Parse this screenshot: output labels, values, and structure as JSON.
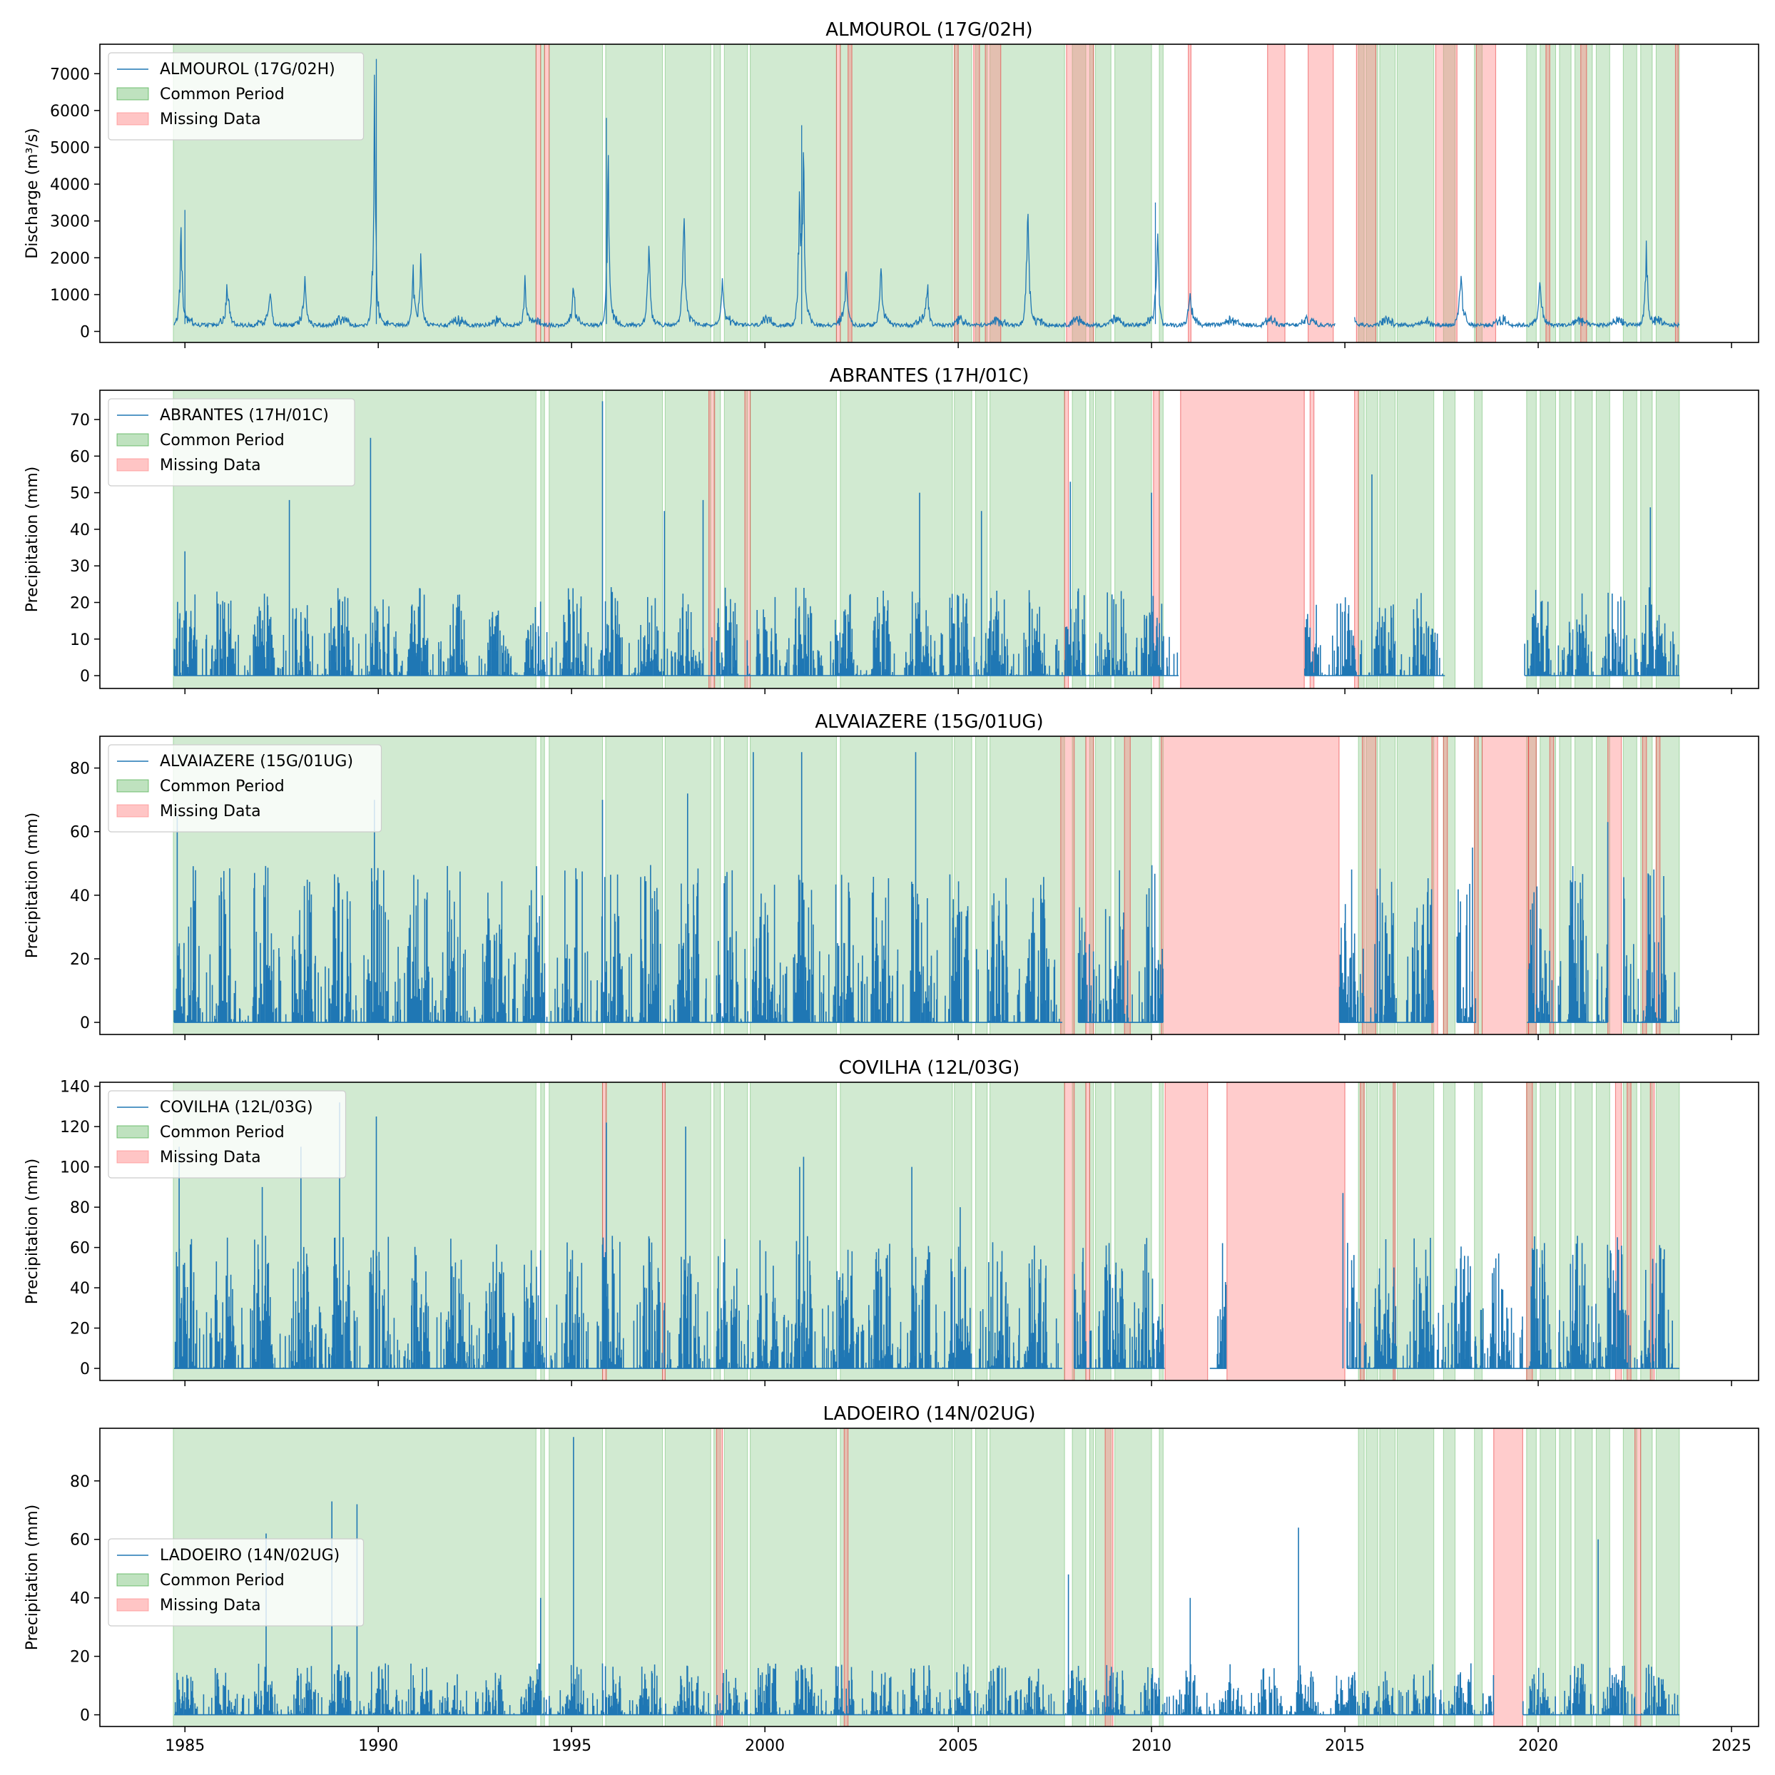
{
  "figure": {
    "xaxis": {
      "ticks": [
        1985,
        1990,
        1995,
        2000,
        2005,
        2010,
        2015,
        2020,
        2025
      ],
      "xlim": [
        1982.8,
        2025.7
      ]
    },
    "colors": {
      "series": "#1f77b4",
      "common": "#2ca02c",
      "missing": "#ff7f7f",
      "missing_edge": "#e41a1c"
    }
  },
  "common_period": [
    [
      1984.7,
      1994.08
    ],
    [
      1994.2,
      1994.3
    ],
    [
      1994.42,
      1995.8
    ],
    [
      1995.88,
      1997.35
    ],
    [
      1997.42,
      1998.6
    ],
    [
      1998.68,
      1998.85
    ],
    [
      1998.95,
      1999.55
    ],
    [
      1999.62,
      2001.85
    ],
    [
      2001.95,
      2004.85
    ],
    [
      2004.9,
      2005.35
    ],
    [
      2005.45,
      2005.75
    ],
    [
      2005.82,
      2007.75
    ],
    [
      2007.95,
      2008.3
    ],
    [
      2008.4,
      2008.5
    ],
    [
      2008.55,
      2008.95
    ],
    [
      2009.05,
      2010.0
    ],
    [
      2010.2,
      2010.3
    ],
    [
      2015.35,
      2015.5
    ],
    [
      2015.55,
      2015.85
    ],
    [
      2015.9,
      2016.3
    ],
    [
      2016.35,
      2017.3
    ],
    [
      2017.55,
      2017.85
    ],
    [
      2018.35,
      2018.55
    ],
    [
      2019.7,
      2019.95
    ],
    [
      2020.05,
      2020.45
    ],
    [
      2020.55,
      2020.85
    ],
    [
      2020.95,
      2021.4
    ],
    [
      2021.5,
      2021.85
    ],
    [
      2022.2,
      2022.55
    ],
    [
      2022.65,
      2022.95
    ],
    [
      2023.05,
      2023.65
    ]
  ],
  "chart_data": [
    {
      "type": "line",
      "title": "ALMOUROL  (17G/02H)",
      "ylabel": "Discharge (m³/s)",
      "ylim": [
        -300,
        7800
      ],
      "yticks": [
        0,
        1000,
        2000,
        3000,
        4000,
        5000,
        6000,
        7000
      ],
      "legend": {
        "position": "upper-left",
        "entries": [
          "ALMOUROL  (17G/02H)",
          "Common Period",
          "Missing Data"
        ]
      },
      "series": {
        "name": "ALMOUROL  (17G/02H)",
        "baseline": 120,
        "noise": 180,
        "gaps": [
          [
            2014.75,
            2015.25
          ]
        ],
        "peaks": [
          [
            1984.9,
            3300
          ],
          [
            1986.1,
            1450
          ],
          [
            1987.2,
            1350
          ],
          [
            1988.1,
            1900
          ],
          [
            1989.9,
            7400
          ],
          [
            1990.9,
            1850
          ],
          [
            1991.1,
            2000
          ],
          [
            1993.8,
            1550
          ],
          [
            1995.05,
            1300
          ],
          [
            1995.95,
            5700
          ],
          [
            1997.0,
            2800
          ],
          [
            1997.9,
            4400
          ],
          [
            1998.9,
            1500
          ],
          [
            2000.9,
            5000
          ],
          [
            2001.0,
            5600
          ],
          [
            2002.1,
            2000
          ],
          [
            2003.0,
            2000
          ],
          [
            2004.2,
            1500
          ],
          [
            2006.8,
            5000
          ],
          [
            2010.15,
            3500
          ],
          [
            2011.0,
            1100
          ],
          [
            2015.2,
            1200
          ],
          [
            2018.0,
            1850
          ],
          [
            2020.05,
            1400
          ],
          [
            2022.8,
            2700
          ]
        ],
        "spikes": [
          [
            1985.0,
            3300
          ],
          [
            1989.95,
            7400
          ],
          [
            1995.9,
            5800
          ],
          [
            2000.95,
            5600
          ],
          [
            2010.1,
            3500
          ]
        ]
      },
      "missing": [
        [
          1994.08,
          1994.2
        ],
        [
          1994.3,
          1994.42
        ],
        [
          2001.85,
          2001.95
        ],
        [
          2002.15,
          2002.25
        ],
        [
          2004.9,
          2005.0
        ],
        [
          2005.4,
          2005.55
        ],
        [
          2005.7,
          2006.1
        ],
        [
          2007.8,
          2008.5
        ],
        [
          2010.95,
          2011.02
        ],
        [
          2013.0,
          2013.45
        ],
        [
          2014.05,
          2014.7
        ],
        [
          2015.3,
          2015.8
        ],
        [
          2017.35,
          2017.9
        ],
        [
          2018.4,
          2018.9
        ],
        [
          2020.2,
          2020.3
        ],
        [
          2021.1,
          2021.25
        ],
        [
          2023.55,
          2023.62
        ]
      ]
    },
    {
      "type": "line",
      "title": "ABRANTES (17H/01C)",
      "ylabel": "Precipitation (mm)",
      "ylim": [
        -3.5,
        78
      ],
      "yticks": [
        0,
        10,
        20,
        30,
        40,
        50,
        60,
        70
      ],
      "legend": {
        "position": "upper-left",
        "entries": [
          "ABRANTES (17H/01C)",
          "Common Period",
          "Missing Data"
        ]
      },
      "series": {
        "name": "ABRANTES (17H/01C)",
        "noise": 22,
        "gaps": [
          [
            2010.7,
            2013.95
          ],
          [
            2017.6,
            2019.65
          ]
        ],
        "spikes": [
          [
            1985.0,
            34
          ],
          [
            1987.7,
            48
          ],
          [
            1989.8,
            65
          ],
          [
            1995.8,
            75
          ],
          [
            1997.4,
            45
          ],
          [
            1998.4,
            48
          ],
          [
            2004.0,
            50
          ],
          [
            2005.6,
            45
          ],
          [
            2007.9,
            53
          ],
          [
            2010.0,
            50
          ],
          [
            2015.7,
            55
          ],
          [
            2022.9,
            46
          ]
        ]
      },
      "missing": [
        [
          1998.55,
          1998.7
        ],
        [
          1999.48,
          1999.62
        ],
        [
          2007.75,
          2007.85
        ],
        [
          2010.05,
          2010.2
        ],
        [
          2010.75,
          2013.95
        ],
        [
          2014.1,
          2014.2
        ],
        [
          2015.25,
          2015.35
        ]
      ]
    },
    {
      "type": "line",
      "title": "ALVAIAZERE (15G/01UG)",
      "ylabel": "Precipitation (mm)",
      "ylim": [
        -3.8,
        90
      ],
      "yticks": [
        0,
        20,
        40,
        60,
        80
      ],
      "legend": {
        "position": "upper-left",
        "entries": [
          "ALVAIAZERE (15G/01UG)",
          "Common Period",
          "Missing Data"
        ]
      },
      "series": {
        "name": "ALVAIAZERE (15G/01UG)",
        "noise": 45,
        "gaps": [
          [
            2007.7,
            2008.1
          ],
          [
            2010.3,
            2014.85
          ],
          [
            2017.3,
            2017.9
          ],
          [
            2018.4,
            2019.7
          ],
          [
            2021.8,
            2022.2
          ]
        ],
        "spikes": [
          [
            1984.8,
            65
          ],
          [
            1986.8,
            47
          ],
          [
            1989.9,
            70
          ],
          [
            1995.8,
            70
          ],
          [
            1998.0,
            72
          ],
          [
            1999.7,
            85
          ],
          [
            2000.95,
            85
          ],
          [
            2003.9,
            85
          ],
          [
            2018.3,
            55
          ],
          [
            2021.8,
            63
          ]
        ]
      },
      "missing": [
        [
          2007.65,
          2008.0
        ],
        [
          2008.3,
          2008.5
        ],
        [
          2009.3,
          2009.45
        ],
        [
          2010.25,
          2014.85
        ],
        [
          2015.45,
          2015.8
        ],
        [
          2017.25,
          2017.4
        ],
        [
          2017.55,
          2017.65
        ],
        [
          2018.35,
          2018.45
        ],
        [
          2018.55,
          2019.75
        ],
        [
          2019.75,
          2019.95
        ],
        [
          2020.3,
          2020.4
        ],
        [
          2021.8,
          2022.15
        ],
        [
          2022.7,
          2022.8
        ],
        [
          2023.05,
          2023.15
        ]
      ]
    },
    {
      "type": "line",
      "title": "COVILHA (12L/03G)",
      "ylabel": "Precipitation (mm)",
      "ylim": [
        -6,
        142
      ],
      "yticks": [
        0,
        20,
        40,
        60,
        80,
        100,
        120,
        140
      ],
      "legend": {
        "position": "upper-left",
        "entries": [
          "COVILHA (12L/03G)",
          "Common Period",
          "Missing Data"
        ]
      },
      "series": {
        "name": "COVILHA (12L/03G)",
        "noise": 60,
        "gaps": [
          [
            2007.7,
            2008.0
          ],
          [
            2010.35,
            2011.5
          ],
          [
            2011.95,
            2015.05
          ]
        ],
        "spikes": [
          [
            1984.85,
            110
          ],
          [
            1987.0,
            90
          ],
          [
            1988.0,
            110
          ],
          [
            1989.0,
            132
          ],
          [
            1989.95,
            125
          ],
          [
            1995.9,
            122
          ],
          [
            1997.95,
            120
          ],
          [
            2000.9,
            100
          ],
          [
            2001.0,
            105
          ],
          [
            2003.8,
            100
          ],
          [
            2005.05,
            80
          ],
          [
            2014.95,
            87
          ]
        ]
      },
      "missing": [
        [
          1995.8,
          1995.9
        ],
        [
          1997.35,
          1997.42
        ],
        [
          2007.75,
          2008.0
        ],
        [
          2008.3,
          2008.4
        ],
        [
          2010.35,
          2011.45
        ],
        [
          2011.95,
          2015.0
        ],
        [
          2015.4,
          2015.5
        ],
        [
          2016.25,
          2016.3
        ],
        [
          2019.7,
          2019.85
        ],
        [
          2022.0,
          2022.15
        ],
        [
          2022.3,
          2022.4
        ],
        [
          2022.9,
          2023.0
        ]
      ]
    },
    {
      "type": "line",
      "title": "LADOEIRO (14N/02UG)",
      "ylabel": "Precipitation (mm)",
      "ylim": [
        -4,
        98
      ],
      "yticks": [
        0,
        20,
        40,
        60,
        80
      ],
      "legend": {
        "position": "center-left",
        "entries": [
          "LADOEIRO (14N/02UG)",
          "Common Period",
          "Missing Data"
        ]
      },
      "series": {
        "name": "LADOEIRO (14N/02UG)",
        "noise": 16,
        "gaps": [
          [
            2018.85,
            2019.6
          ]
        ],
        "spikes": [
          [
            1987.1,
            62
          ],
          [
            1988.8,
            73
          ],
          [
            1989.45,
            72
          ],
          [
            1994.2,
            40
          ],
          [
            1995.05,
            95
          ],
          [
            2007.85,
            48
          ],
          [
            2011.0,
            40
          ],
          [
            2013.8,
            64
          ],
          [
            2021.55,
            60
          ]
        ]
      },
      "missing": [
        [
          1998.75,
          1998.9
        ],
        [
          2002.05,
          2002.15
        ],
        [
          2008.8,
          2009.0
        ],
        [
          2018.85,
          2019.6
        ],
        [
          2022.5,
          2022.65
        ]
      ]
    }
  ]
}
